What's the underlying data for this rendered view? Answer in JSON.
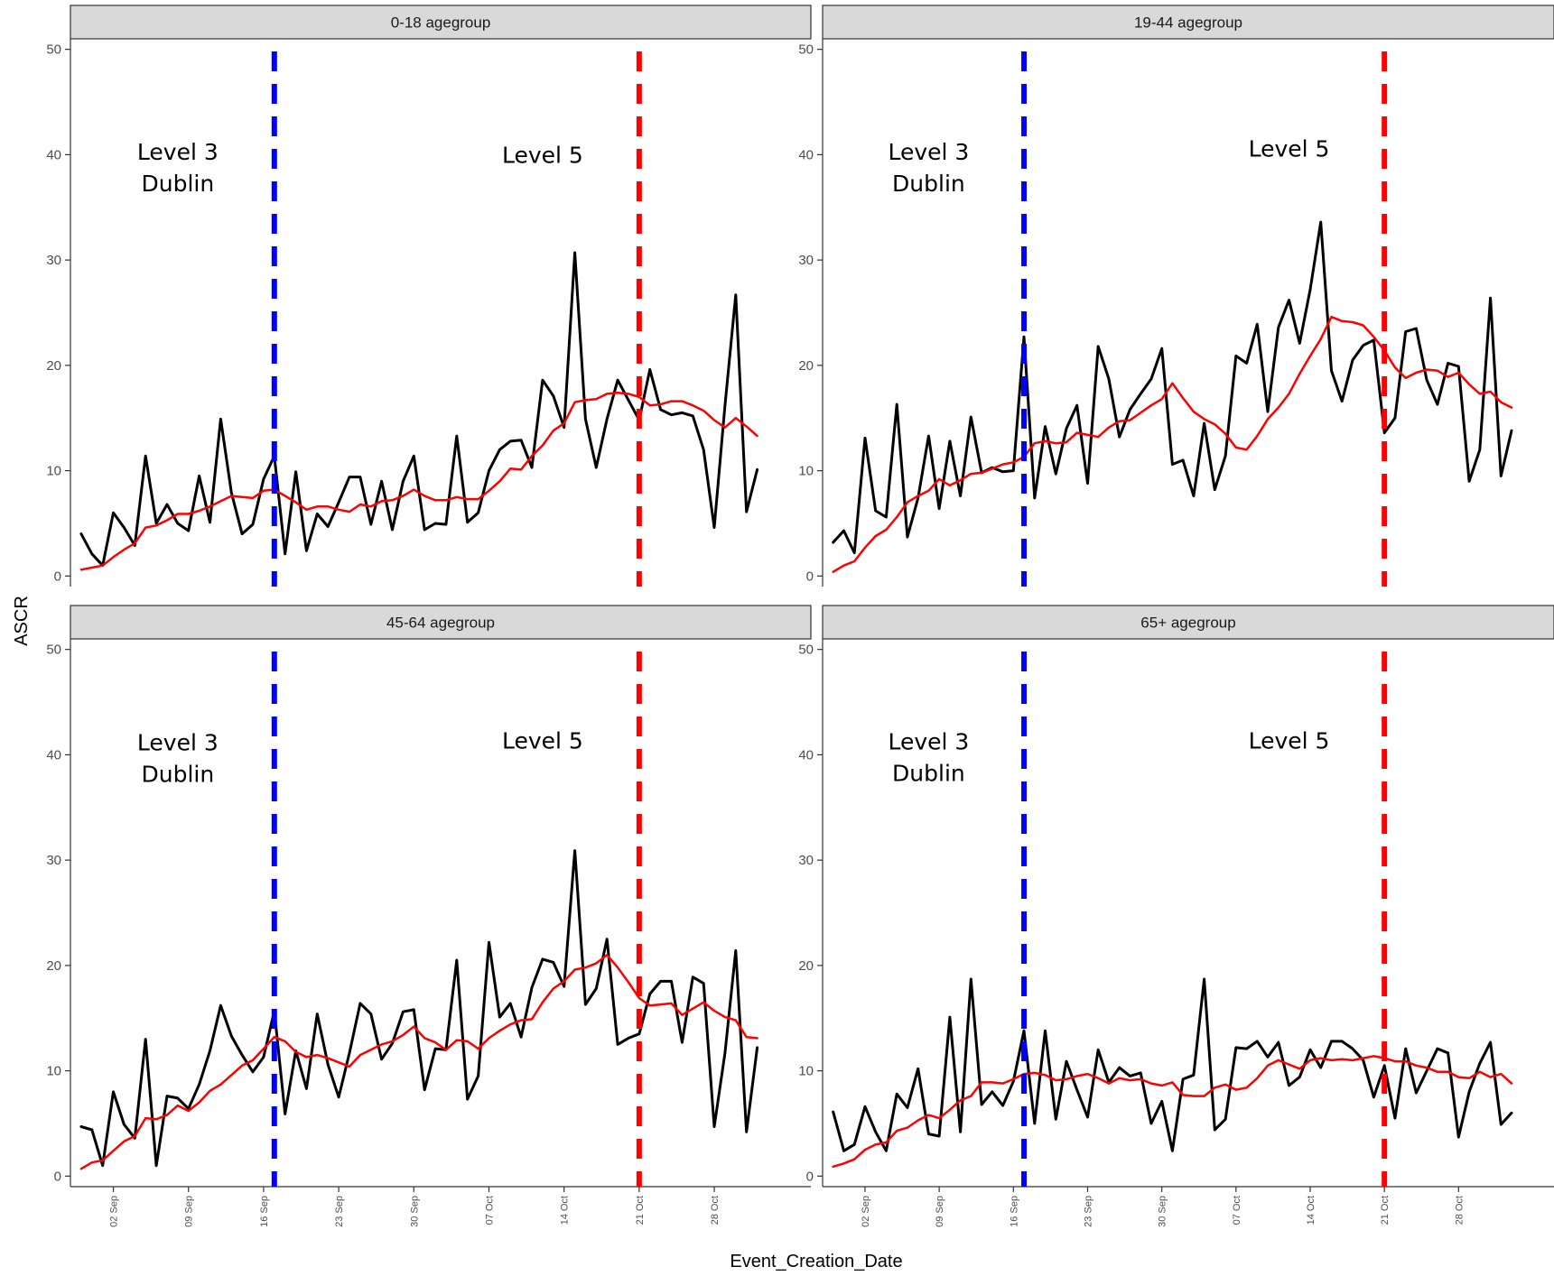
{
  "chart_data": {
    "type": "line",
    "xlabel": "Event_Creation_Date",
    "ylabel": "ASCR",
    "ylim": [
      -1,
      51
    ],
    "yticks": [
      0,
      10,
      20,
      30,
      40,
      50
    ],
    "x_start": "2020-08-30",
    "xlim": [
      "2020-08-29",
      "2020-11-06"
    ],
    "xticks": [
      {
        "date": "2020-09-02",
        "label": "02 Sep"
      },
      {
        "date": "2020-09-09",
        "label": "09 Sep"
      },
      {
        "date": "2020-09-16",
        "label": "16 Sep"
      },
      {
        "date": "2020-09-23",
        "label": "23 Sep"
      },
      {
        "date": "2020-09-30",
        "label": "30 Sep"
      },
      {
        "date": "2020-10-07",
        "label": "07 Oct"
      },
      {
        "date": "2020-10-14",
        "label": "14 Oct"
      },
      {
        "date": "2020-10-21",
        "label": "21 Oct"
      },
      {
        "date": "2020-10-28",
        "label": "28 Oct"
      }
    ],
    "grid": false,
    "legend": "none",
    "vlines": [
      {
        "date": "2020-09-17",
        "color": "#0000ff",
        "style": "dashed"
      },
      {
        "date": "2020-10-21",
        "color": "#ff0000",
        "style": "dashed"
      }
    ],
    "series_colors": {
      "daily": "#000000",
      "rolling": "#ff0000"
    },
    "panels": [
      {
        "title": "0-18 agegroup",
        "annotations": [
          {
            "lines": [
              "Level 3",
              "Dublin"
            ],
            "x": "2020-09-08",
            "y": 39.5
          },
          {
            "lines": [
              "Level 5"
            ],
            "x": "2020-10-12",
            "y": 39.2
          }
        ],
        "series": [
          {
            "values": [
              4.0,
              2.1,
              1.0,
              6.0,
              4.6,
              2.9,
              11.4,
              5.0,
              6.8,
              5.0,
              4.3,
              9.5,
              5.1,
              14.9,
              7.9,
              4.0,
              4.9,
              9.2,
              11.4,
              2.1,
              9.9,
              2.4,
              5.9,
              4.7,
              7.0,
              9.4,
              9.4,
              4.9,
              9.0,
              4.4,
              9.0,
              11.4,
              4.4,
              5.0,
              4.9,
              13.3,
              5.1,
              6.0,
              10.0,
              12.0,
              12.8,
              12.9,
              10.3,
              18.6,
              17.1,
              14.1,
              30.7,
              14.9,
              10.3,
              14.9,
              18.6,
              16.7,
              14.8,
              19.6,
              15.8,
              15.3,
              15.5,
              15.2,
              12.0,
              4.6,
              16.2,
              26.7,
              6.1,
              10.1
            ]
          },
          {
            "values": [
              0.6,
              0.8,
              1.0,
              1.8,
              2.5,
              3.1,
              4.6,
              4.8,
              5.3,
              5.9,
              5.9,
              6.2,
              6.6,
              7.1,
              7.6,
              7.5,
              7.4,
              8.1,
              8.2,
              7.6,
              7.0,
              6.3,
              6.6,
              6.6,
              6.3,
              6.1,
              6.8,
              6.6,
              7.1,
              7.2,
              7.6,
              8.2,
              7.6,
              7.2,
              7.2,
              7.5,
              7.3,
              7.3,
              8.1,
              9.0,
              10.2,
              10.1,
              11.4,
              12.4,
              13.8,
              14.5,
              16.5,
              16.7,
              16.8,
              17.3,
              17.4,
              17.3,
              17.0,
              16.2,
              16.3,
              16.6,
              16.6,
              16.2,
              15.7,
              14.8,
              14.1,
              15.0,
              14.2,
              13.3
            ]
          }
        ]
      },
      {
        "title": "19-44 agegroup",
        "annotations": [
          {
            "lines": [
              "Level 3",
              "Dublin"
            ],
            "x": "2020-09-08",
            "y": 39.5
          },
          {
            "lines": [
              "Level 5"
            ],
            "x": "2020-10-12",
            "y": 39.8
          }
        ],
        "series": [
          {
            "values": [
              3.2,
              4.3,
              2.2,
              13.1,
              6.2,
              5.6,
              16.3,
              3.7,
              7.4,
              13.3,
              6.4,
              12.8,
              7.6,
              15.1,
              9.8,
              10.3,
              9.9,
              10.0,
              22.7,
              7.4,
              14.2,
              9.7,
              14.0,
              16.2,
              8.8,
              21.8,
              18.7,
              13.2,
              15.8,
              17.3,
              18.7,
              21.6,
              10.6,
              11.0,
              7.6,
              14.5,
              8.2,
              11.4,
              20.9,
              20.2,
              23.9,
              15.6,
              23.6,
              26.2,
              22.1,
              27.2,
              33.6,
              19.5,
              16.6,
              20.5,
              21.9,
              22.4,
              13.6,
              15.0,
              23.2,
              23.5,
              18.6,
              16.3,
              20.2,
              19.9,
              9.0,
              12.0,
              26.4,
              9.5,
              13.8
            ]
          },
          {
            "values": [
              0.4,
              1.0,
              1.4,
              2.7,
              3.8,
              4.4,
              5.6,
              7.0,
              7.6,
              8.1,
              9.2,
              8.6,
              9.1,
              9.7,
              9.8,
              10.2,
              10.6,
              10.8,
              11.3,
              12.6,
              12.8,
              12.6,
              12.7,
              13.6,
              13.4,
              13.2,
              14.1,
              14.7,
              14.8,
              15.5,
              16.2,
              16.8,
              18.3,
              16.9,
              15.6,
              14.9,
              14.4,
              13.5,
              12.2,
              12.0,
              13.3,
              14.9,
              16.0,
              17.3,
              19.2,
              20.9,
              22.5,
              24.6,
              24.2,
              24.1,
              23.8,
              22.7,
              21.4,
              19.8,
              18.8,
              19.3,
              19.6,
              19.5,
              18.9,
              19.3,
              18.2,
              17.3,
              17.5,
              16.5,
              16.0
            ]
          }
        ]
      },
      {
        "title": "45-64 agegroup",
        "annotations": [
          {
            "lines": [
              "Level 3",
              "Dublin"
            ],
            "x": "2020-09-08",
            "y": 40.4
          },
          {
            "lines": [
              "Level 5"
            ],
            "x": "2020-10-12",
            "y": 40.6
          }
        ],
        "series": [
          {
            "values": [
              4.7,
              4.4,
              1.0,
              8.0,
              4.9,
              3.6,
              13.0,
              1.0,
              7.6,
              7.4,
              6.4,
              8.7,
              11.9,
              16.2,
              13.3,
              11.5,
              9.9,
              11.3,
              15.7,
              5.9,
              11.9,
              8.3,
              15.4,
              10.6,
              7.5,
              11.7,
              16.4,
              15.4,
              11.1,
              12.6,
              15.6,
              15.8,
              8.2,
              12.1,
              12.0,
              20.5,
              7.3,
              9.5,
              22.2,
              15.1,
              16.4,
              13.2,
              17.9,
              20.6,
              20.3,
              18.0,
              30.9,
              16.3,
              17.8,
              22.5,
              12.5,
              13.1,
              13.5,
              17.3,
              18.5,
              18.5,
              12.7,
              18.9,
              18.3,
              4.7,
              11.7,
              21.4,
              4.2,
              12.2
            ]
          },
          {
            "values": [
              0.7,
              1.3,
              1.5,
              2.4,
              3.3,
              3.8,
              5.5,
              5.4,
              5.8,
              6.7,
              6.2,
              7.0,
              8.1,
              8.7,
              9.6,
              10.5,
              11.0,
              12.1,
              13.2,
              12.8,
              11.8,
              11.3,
              11.5,
              11.2,
              10.8,
              10.4,
              11.5,
              12.0,
              12.5,
              12.8,
              13.4,
              14.2,
              13.1,
              12.7,
              12.0,
              12.9,
              12.8,
              12.1,
              13.1,
              13.8,
              14.4,
              14.8,
              14.9,
              16.5,
              17.8,
              18.5,
              19.6,
              19.8,
              20.2,
              21.0,
              19.8,
              18.4,
              16.9,
              16.2,
              16.3,
              16.4,
              15.3,
              15.9,
              16.5,
              15.7,
              15.1,
              14.8,
              13.2,
              13.1
            ]
          }
        ]
      },
      {
        "title": "65+ agegroup",
        "annotations": [
          {
            "lines": [
              "Level 3",
              "Dublin"
            ],
            "x": "2020-09-08",
            "y": 40.5
          },
          {
            "lines": [
              "Level 5"
            ],
            "x": "2020-10-12",
            "y": 40.6
          }
        ],
        "series": [
          {
            "values": [
              6.1,
              2.4,
              3.0,
              6.6,
              4.2,
              2.4,
              7.8,
              6.5,
              10.2,
              4.0,
              3.8,
              15.1,
              4.2,
              18.7,
              6.8,
              8.0,
              6.7,
              9.0,
              13.8,
              5.0,
              13.8,
              5.4,
              10.9,
              8.2,
              5.6,
              12.0,
              8.9,
              10.3,
              9.5,
              9.8,
              5.0,
              7.1,
              2.4,
              9.2,
              9.6,
              18.7,
              4.4,
              5.4,
              12.2,
              12.1,
              12.8,
              11.3,
              12.7,
              8.6,
              9.4,
              12.0,
              10.3,
              12.8,
              12.8,
              12.1,
              11.0,
              7.5,
              10.5,
              5.5,
              12.1,
              7.9,
              10.0,
              12.1,
              11.7,
              3.7,
              8.0,
              10.7,
              12.7,
              4.9,
              6.0
            ]
          },
          {
            "values": [
              0.9,
              1.2,
              1.6,
              2.5,
              3.0,
              3.2,
              4.3,
              4.6,
              5.3,
              5.8,
              5.5,
              6.3,
              7.2,
              7.6,
              8.9,
              8.9,
              8.8,
              9.2,
              9.7,
              9.8,
              9.6,
              9.1,
              9.2,
              9.5,
              9.7,
              9.3,
              8.8,
              9.3,
              9.1,
              9.2,
              8.8,
              8.6,
              8.9,
              7.7,
              7.6,
              7.6,
              8.4,
              8.7,
              8.2,
              8.4,
              9.3,
              10.5,
              11.0,
              10.6,
              10.2,
              11.0,
              11.2,
              11.0,
              11.1,
              11.0,
              11.2,
              11.4,
              11.2,
              10.9,
              10.9,
              10.5,
              10.3,
              9.9,
              9.9,
              9.4,
              9.3,
              9.9,
              9.4,
              9.7,
              8.8
            ]
          }
        ]
      }
    ]
  }
}
